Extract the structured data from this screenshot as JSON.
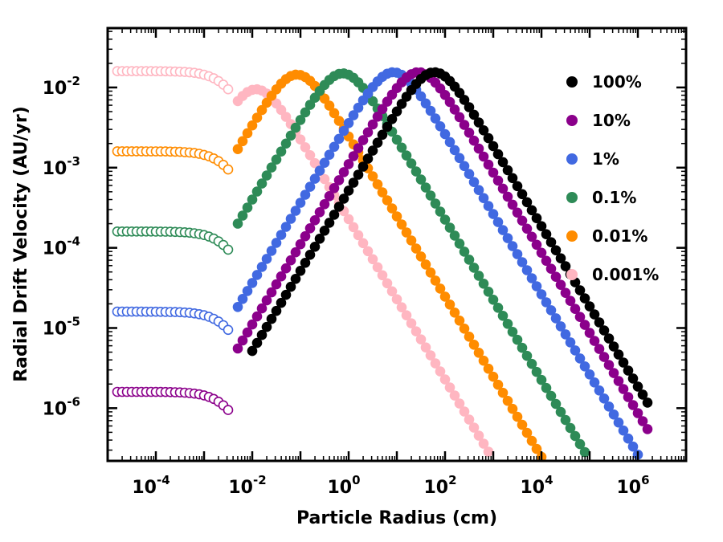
{
  "chart_data": {
    "type": "scatter",
    "title": "",
    "xlabel": "Particle Radius (cm)",
    "ylabel": "Radial Drift Velocity (AU/yr)",
    "xscale": "log",
    "yscale": "log",
    "xlim": [
      1e-05,
      10000000
    ],
    "ylim": [
      2.2e-07,
      0.055
    ],
    "grid": false,
    "legend_position": "top-right",
    "xticks": [
      {
        "base": "10",
        "exp": "-4",
        "value": 0.0001
      },
      {
        "base": "10",
        "exp": "-2",
        "value": 0.01
      },
      {
        "base": "10",
        "exp": "0",
        "value": 1
      },
      {
        "base": "10",
        "exp": "2",
        "value": 100
      },
      {
        "base": "10",
        "exp": "4",
        "value": 10000
      },
      {
        "base": "10",
        "exp": "6",
        "value": 1000000
      }
    ],
    "yticks": [
      {
        "base": "10",
        "exp": "-6",
        "value": 1e-06
      },
      {
        "base": "10",
        "exp": "-5",
        "value": 1e-05
      },
      {
        "base": "10",
        "exp": "-4",
        "value": 0.0001
      },
      {
        "base": "10",
        "exp": "-3",
        "value": 0.001
      },
      {
        "base": "10",
        "exp": "-2",
        "value": 0.01
      }
    ],
    "series": [
      {
        "name": "100%",
        "label": "100%",
        "color": "#000000",
        "plateau": null,
        "size_peak": 60,
        "peak_velocity": 0.0155,
        "stokes_onset": 0.0085
      },
      {
        "name": "10%",
        "label": "10%",
        "color": "#8b008b",
        "plateau": 1.6e-06,
        "size_peak": 28,
        "peak_velocity": 0.0155,
        "stokes_onset": 0.004
      },
      {
        "name": "1%",
        "label": "1%",
        "color": "#4169e1",
        "plateau": 1.6e-05,
        "size_peak": 8.5,
        "peak_velocity": 0.0155,
        "stokes_onset": 0.004
      },
      {
        "name": "0.1%",
        "label": "0.1%",
        "color": "#2e8b57",
        "plateau": 0.00016,
        "size_peak": 0.75,
        "peak_velocity": 0.015,
        "stokes_onset": 0.004
      },
      {
        "name": "0.01%",
        "label": "0.01%",
        "color": "#ff8c00",
        "plateau": 0.0016,
        "size_peak": 0.085,
        "peak_velocity": 0.0145,
        "stokes_onset": 0.004
      },
      {
        "name": "0.001%",
        "label": "0.001%",
        "color": "#ffb6c1",
        "plateau": 0.016,
        "size_peak": 0.012,
        "peak_velocity": 0.0095,
        "stokes_onset": 0.004
      }
    ],
    "markers": "filled circles in the Stokes/Epstein regime; open circles for the small-particle plateau"
  }
}
